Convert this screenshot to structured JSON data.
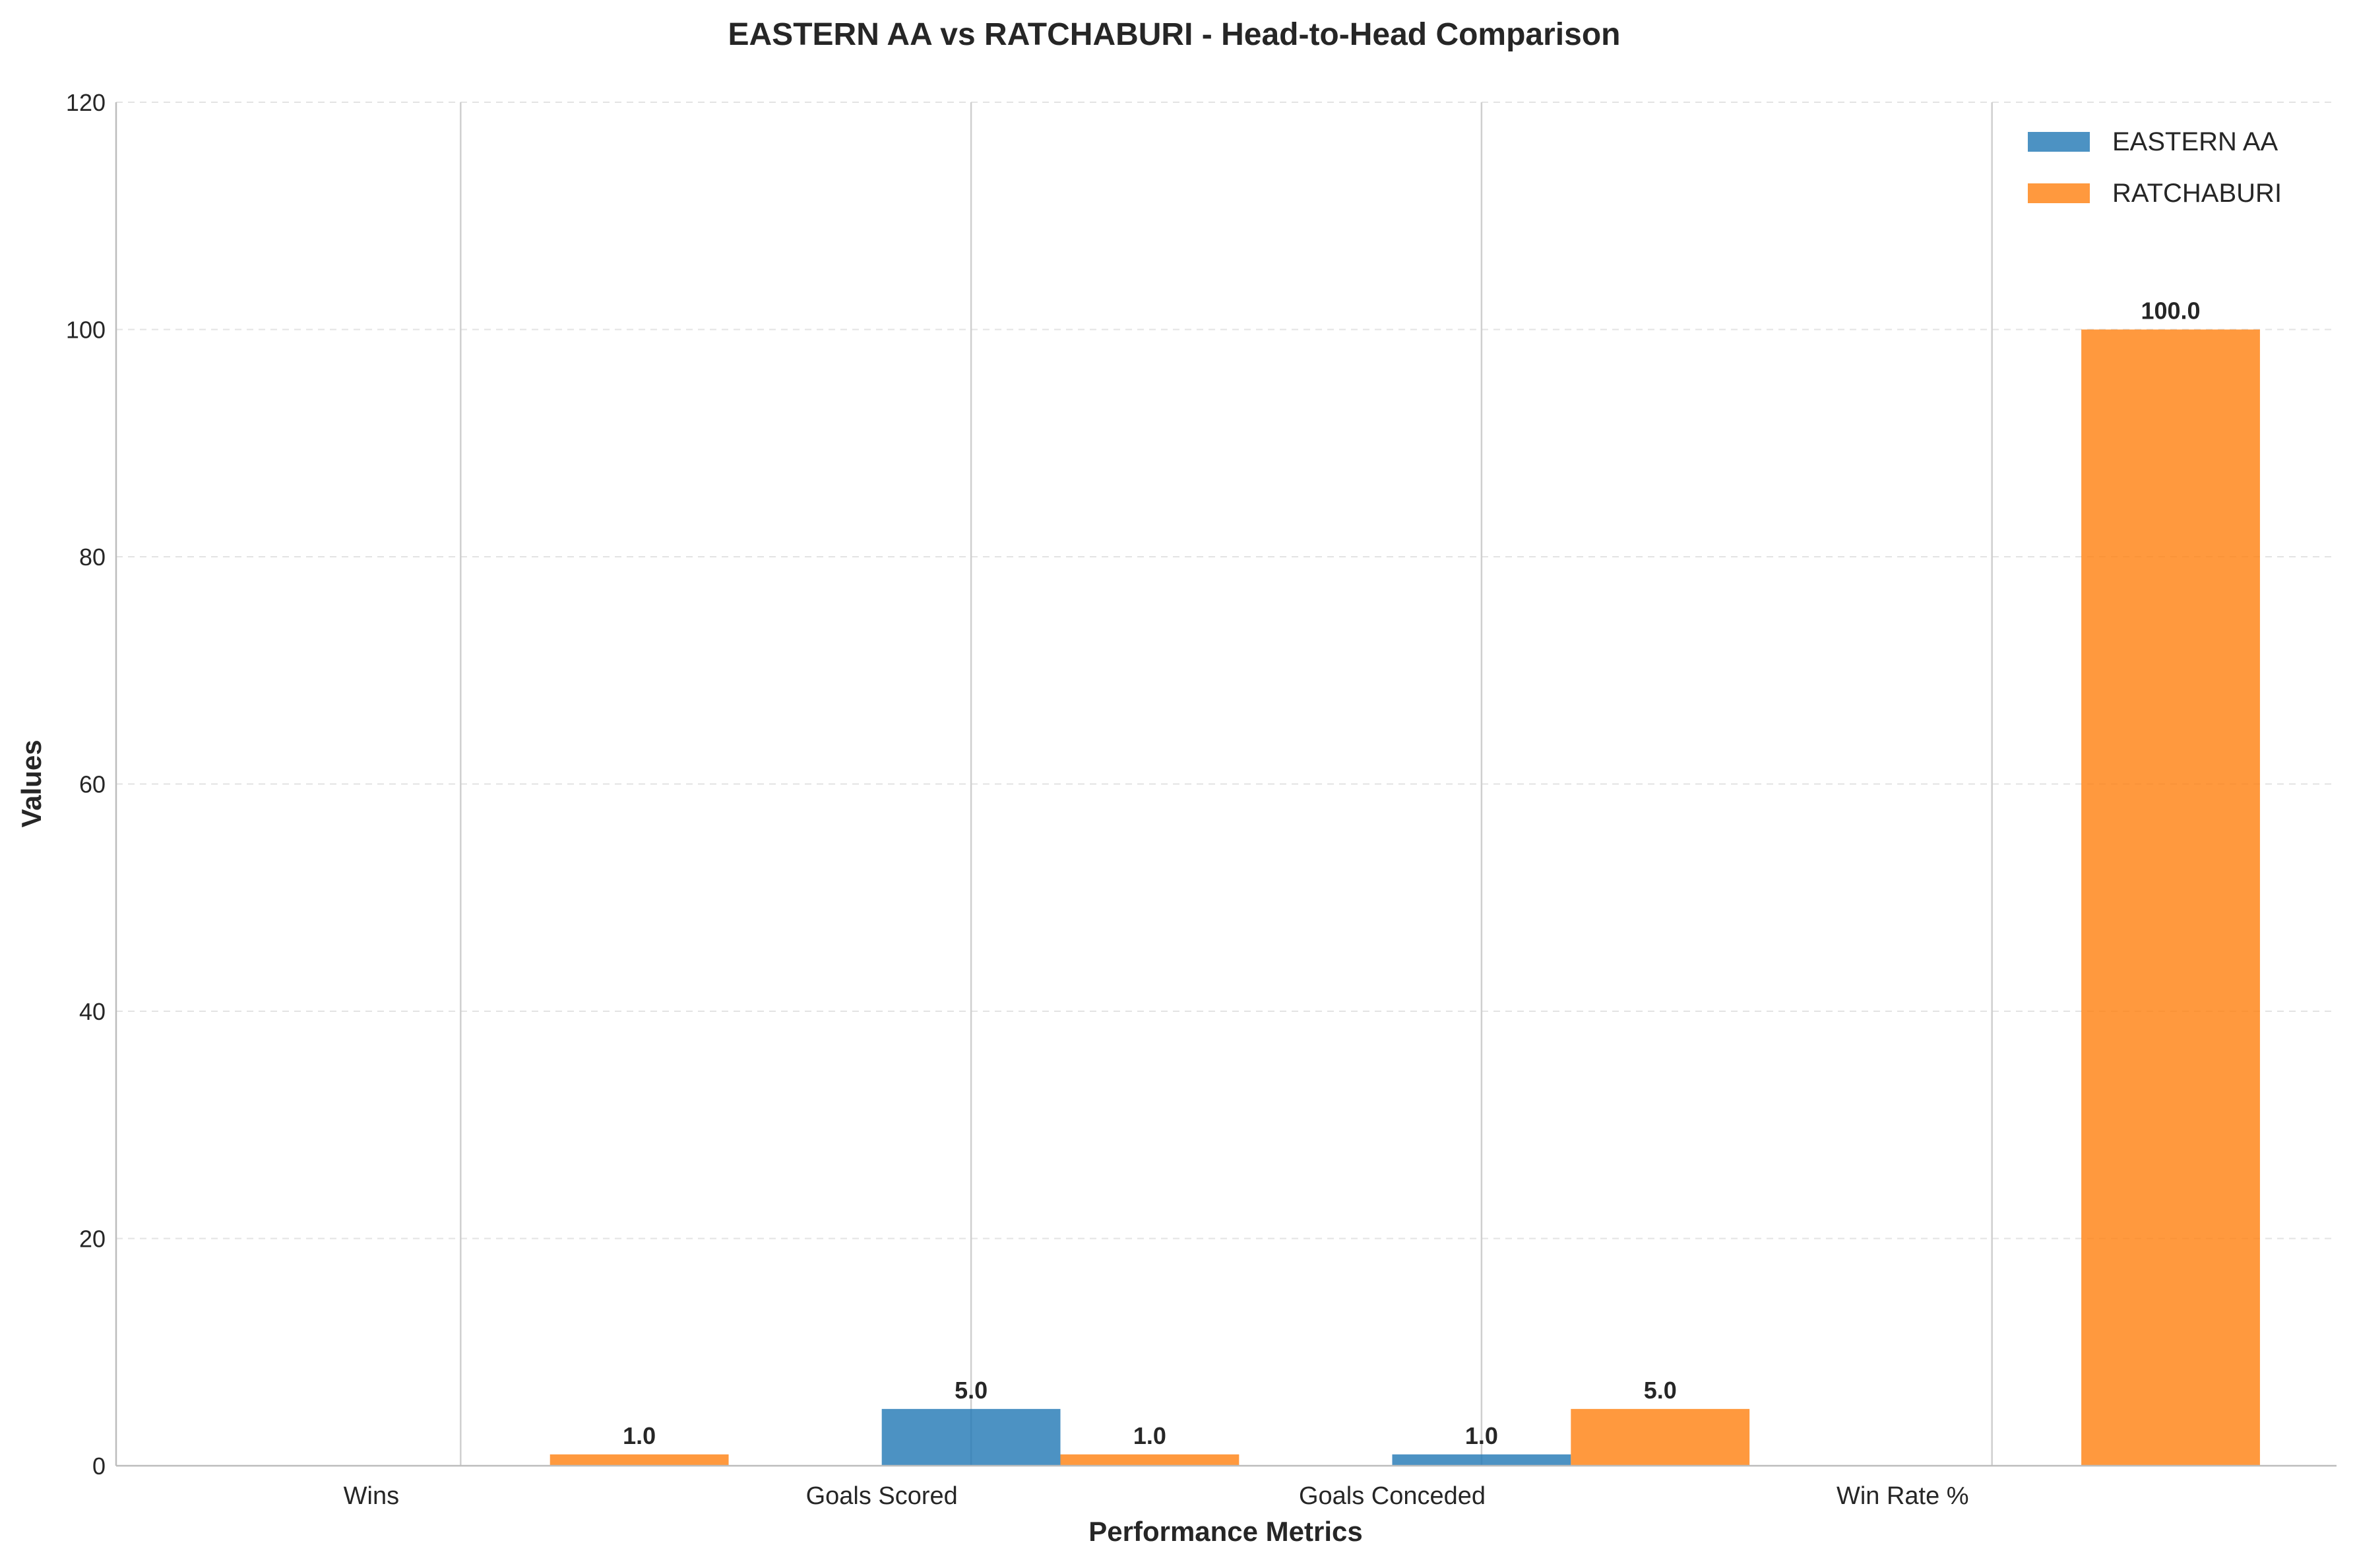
{
  "chart_data": {
    "type": "bar",
    "title": "EASTERN AA vs RATCHABURI - Head-to-Head Comparison",
    "xlabel": "Performance Metrics",
    "ylabel": "Values",
    "categories": [
      "Wins",
      "Goals Scored",
      "Goals Conceded",
      "Win Rate %"
    ],
    "series": [
      {
        "name": "EASTERN AA",
        "values": [
          0,
          5,
          1,
          0
        ],
        "labels": [
          "",
          "5.0",
          "1.0",
          ""
        ],
        "color": "#1f77b4"
      },
      {
        "name": "RATCHABURI",
        "values": [
          1,
          1,
          5,
          100
        ],
        "labels": [
          "1.0",
          "1.0",
          "5.0",
          "100.0"
        ],
        "color": "#ff7f0e"
      }
    ],
    "ylim": [
      0,
      120
    ],
    "yticks": [
      0,
      20,
      40,
      60,
      80,
      100,
      120
    ],
    "grid": "y-dashed",
    "legend": "top-right"
  }
}
